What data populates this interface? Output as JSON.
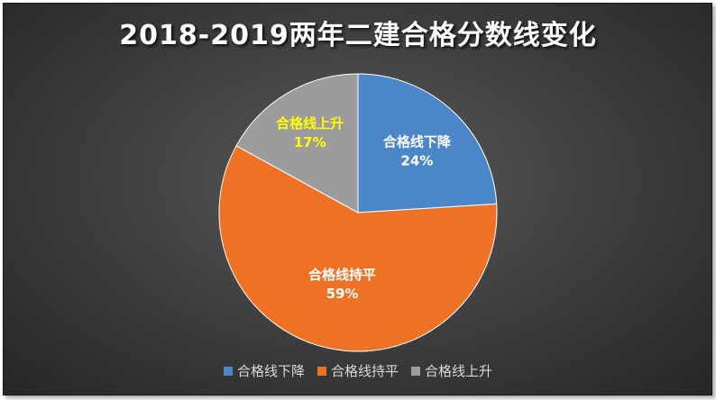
{
  "chart_data": {
    "type": "pie",
    "title": "2018-2019两年二建合格分数线变化",
    "slices": [
      {
        "label": "合格线下降",
        "value": 24,
        "display": "24%",
        "color": "#4a86c8",
        "label_color": "#ffffff"
      },
      {
        "label": "合格线持平",
        "value": 59,
        "display": "59%",
        "color": "#ee7124",
        "label_color": "#ffffff"
      },
      {
        "label": "合格线上升",
        "value": 17,
        "display": "17%",
        "color": "#9c9c9c",
        "label_color": "#ffff00"
      }
    ],
    "start_angle_deg": 0,
    "direction": "clockwise",
    "legend_position": "bottom"
  }
}
